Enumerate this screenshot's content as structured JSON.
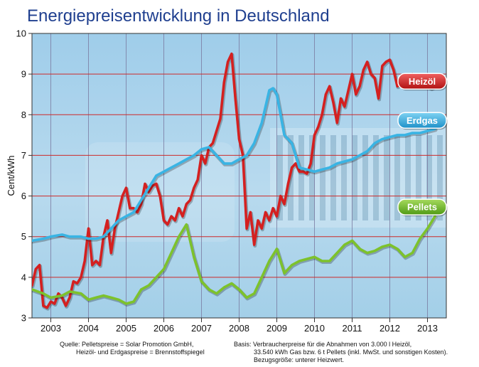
{
  "chart_data": {
    "type": "line",
    "title": "Energiepreisentwicklung in Deutschland",
    "ylabel": "Cent/kWh",
    "xlabel": "",
    "ylim": [
      3,
      10
    ],
    "xlim": [
      2002.5,
      2013.5
    ],
    "yticks": [
      "3",
      "4",
      "5",
      "6",
      "7",
      "8",
      "9",
      "10"
    ],
    "xticks": [
      "2003",
      "2004",
      "2005",
      "2006",
      "2007",
      "2008",
      "2009",
      "2010",
      "2011",
      "2012",
      "2013"
    ],
    "grid": true,
    "legend": "right",
    "series": [
      {
        "name": "Heizöl",
        "color": "#d42020",
        "x": [
          2002.5,
          2002.6,
          2002.7,
          2002.8,
          2002.9,
          2003.0,
          2003.1,
          2003.2,
          2003.3,
          2003.4,
          2003.5,
          2003.6,
          2003.7,
          2003.8,
          2003.9,
          2004.0,
          2004.1,
          2004.2,
          2004.3,
          2004.4,
          2004.5,
          2004.6,
          2004.7,
          2004.8,
          2004.9,
          2005.0,
          2005.1,
          2005.2,
          2005.3,
          2005.4,
          2005.5,
          2005.6,
          2005.7,
          2005.8,
          2005.9,
          2006.0,
          2006.1,
          2006.2,
          2006.3,
          2006.4,
          2006.5,
          2006.6,
          2006.7,
          2006.8,
          2006.9,
          2007.0,
          2007.1,
          2007.2,
          2007.3,
          2007.4,
          2007.5,
          2007.6,
          2007.7,
          2007.8,
          2007.9,
          2008.0,
          2008.1,
          2008.2,
          2008.3,
          2008.4,
          2008.5,
          2008.6,
          2008.7,
          2008.8,
          2008.9,
          2009.0,
          2009.1,
          2009.2,
          2009.3,
          2009.4,
          2009.5,
          2009.6,
          2009.7,
          2009.8,
          2009.9,
          2010.0,
          2010.1,
          2010.2,
          2010.3,
          2010.4,
          2010.5,
          2010.6,
          2010.7,
          2010.8,
          2010.9,
          2011.0,
          2011.1,
          2011.2,
          2011.3,
          2011.4,
          2011.5,
          2011.6,
          2011.7,
          2011.8,
          2011.9,
          2012.0,
          2012.1,
          2012.2,
          2012.3,
          2012.4,
          2012.5,
          2012.6,
          2012.7,
          2012.8,
          2012.9,
          2013.0,
          2013.1,
          2013.2
        ],
        "y": [
          3.8,
          4.2,
          4.3,
          3.3,
          3.25,
          3.4,
          3.35,
          3.6,
          3.5,
          3.3,
          3.5,
          3.9,
          3.85,
          4.0,
          4.4,
          5.2,
          4.3,
          4.4,
          4.3,
          5.0,
          5.4,
          4.6,
          5.2,
          5.6,
          6.0,
          6.2,
          5.7,
          5.7,
          5.6,
          5.8,
          6.3,
          6.1,
          6.25,
          6.3,
          6.0,
          5.4,
          5.3,
          5.5,
          5.4,
          5.7,
          5.5,
          5.8,
          5.9,
          6.2,
          6.4,
          7.0,
          6.8,
          7.2,
          7.3,
          7.6,
          7.9,
          8.8,
          9.3,
          9.5,
          8.4,
          7.4,
          7.0,
          5.2,
          5.6,
          4.8,
          5.4,
          5.2,
          5.6,
          5.4,
          5.7,
          5.5,
          6.0,
          5.8,
          6.3,
          6.7,
          6.8,
          6.6,
          6.6,
          6.55,
          6.8,
          7.5,
          7.7,
          8.0,
          8.5,
          8.7,
          8.3,
          7.8,
          8.4,
          8.2,
          8.6,
          9.0,
          8.5,
          8.7,
          9.1,
          9.3,
          9.0,
          8.9,
          8.4,
          9.2,
          9.3,
          9.35,
          9.1,
          8.7,
          8.75,
          8.8,
          8.9,
          9.0,
          8.9,
          8.7,
          8.8,
          8.7,
          8.65,
          8.7
        ]
      },
      {
        "name": "Erdgas",
        "color": "#39b4e4",
        "x": [
          2002.5,
          2002.8,
          2003.0,
          2003.3,
          2003.5,
          2003.8,
          2004.0,
          2004.2,
          2004.4,
          2004.6,
          2004.8,
          2005.0,
          2005.2,
          2005.4,
          2005.6,
          2005.8,
          2006.0,
          2006.2,
          2006.4,
          2006.6,
          2006.8,
          2007.0,
          2007.2,
          2007.4,
          2007.6,
          2007.8,
          2008.0,
          2008.2,
          2008.4,
          2008.6,
          2008.7,
          2008.8,
          2008.9,
          2009.0,
          2009.2,
          2009.4,
          2009.6,
          2009.8,
          2010.0,
          2010.2,
          2010.4,
          2010.6,
          2010.8,
          2011.0,
          2011.2,
          2011.4,
          2011.6,
          2011.8,
          2012.0,
          2012.2,
          2012.4,
          2012.6,
          2012.8,
          2013.0,
          2013.2
        ],
        "y": [
          4.9,
          4.95,
          5.0,
          5.05,
          5.0,
          5.0,
          4.95,
          4.95,
          5.0,
          5.2,
          5.4,
          5.5,
          5.6,
          5.9,
          6.2,
          6.5,
          6.6,
          6.7,
          6.8,
          6.9,
          7.0,
          7.15,
          7.2,
          7.0,
          6.8,
          6.8,
          6.9,
          7.0,
          7.3,
          7.8,
          8.2,
          8.6,
          8.65,
          8.5,
          7.5,
          7.3,
          6.7,
          6.65,
          6.6,
          6.65,
          6.7,
          6.8,
          6.85,
          6.9,
          7.0,
          7.1,
          7.3,
          7.4,
          7.45,
          7.5,
          7.5,
          7.55,
          7.55,
          7.6,
          7.65
        ]
      },
      {
        "name": "Pellets",
        "color": "#7dc22c",
        "x": [
          2002.5,
          2002.8,
          2003.0,
          2003.3,
          2003.5,
          2003.8,
          2004.0,
          2004.2,
          2004.4,
          2004.6,
          2004.8,
          2005.0,
          2005.2,
          2005.4,
          2005.6,
          2005.8,
          2006.0,
          2006.2,
          2006.4,
          2006.6,
          2006.8,
          2007.0,
          2007.2,
          2007.4,
          2007.6,
          2007.8,
          2008.0,
          2008.2,
          2008.4,
          2008.6,
          2008.8,
          2009.0,
          2009.2,
          2009.4,
          2009.6,
          2009.8,
          2010.0,
          2010.2,
          2010.4,
          2010.6,
          2010.8,
          2011.0,
          2011.2,
          2011.4,
          2011.6,
          2011.8,
          2012.0,
          2012.2,
          2012.4,
          2012.6,
          2012.8,
          2013.0,
          2013.2
        ],
        "y": [
          3.7,
          3.6,
          3.5,
          3.55,
          3.65,
          3.6,
          3.45,
          3.5,
          3.55,
          3.5,
          3.45,
          3.35,
          3.4,
          3.7,
          3.8,
          4.0,
          4.2,
          4.6,
          5.0,
          5.3,
          4.5,
          3.9,
          3.7,
          3.6,
          3.75,
          3.85,
          3.7,
          3.5,
          3.6,
          4.0,
          4.4,
          4.7,
          4.1,
          4.3,
          4.4,
          4.45,
          4.5,
          4.4,
          4.4,
          4.6,
          4.8,
          4.9,
          4.7,
          4.6,
          4.65,
          4.75,
          4.8,
          4.7,
          4.5,
          4.6,
          4.95,
          5.2,
          5.5
        ]
      }
    ]
  },
  "footnotes": {
    "source_line1": "Quelle: Pelletspreise = Solar Promotion GmbH,",
    "source_line2": "Heizöl- und Erdgaspreise = Brennstoffspiegel",
    "basis_line1": "Basis: Verbraucherpreise für die Abnahmen von 3.000 l Heizöl,",
    "basis_line2": "33.540 kWh Gas bzw. 6 t Pellets (inkl. MwSt. und sonstigen Kosten).",
    "basis_line3": "Bezugsgröße: unterer Heizwert."
  }
}
